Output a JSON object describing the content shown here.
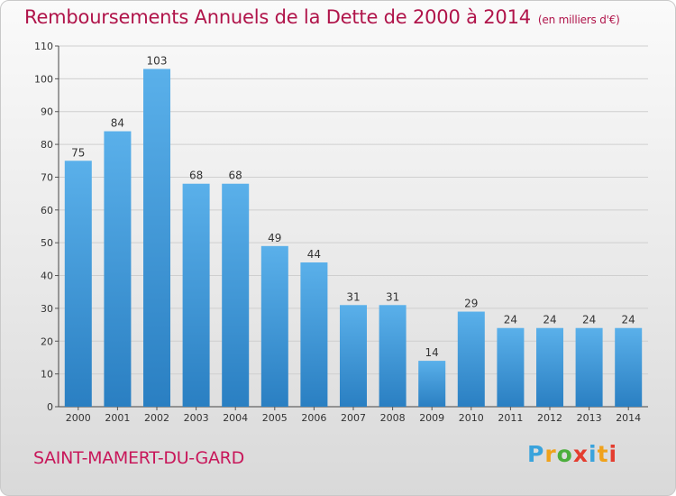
{
  "header": {
    "title": "Remboursements Annuels de la Dette de 2000 à 2014",
    "unit": "(en milliers d'€)"
  },
  "footer": {
    "commune": "SAINT-MAMERT-DU-GARD",
    "logo": "Proxiti",
    "logo_colors": [
      "#3aa3dc",
      "#f0a21b",
      "#4cae3c",
      "#e43d2f",
      "#3aa3dc",
      "#f0a21b",
      "#e43d2f"
    ]
  },
  "colors": {
    "bar_top": "#5ab0ea",
    "bar_bottom": "#2a7fc2",
    "accent": "#b0144a"
  },
  "chart_data": {
    "type": "bar",
    "categories": [
      "2000",
      "2001",
      "2002",
      "2003",
      "2004",
      "2005",
      "2006",
      "2007",
      "2008",
      "2009",
      "2010",
      "2011",
      "2012",
      "2013",
      "2014"
    ],
    "values": [
      75,
      84,
      103,
      68,
      68,
      49,
      44,
      31,
      31,
      14,
      29,
      24,
      24,
      24,
      24
    ],
    "ylim": [
      0,
      110
    ],
    "yticks": [
      0,
      10,
      20,
      30,
      40,
      50,
      60,
      70,
      80,
      90,
      100,
      110
    ],
    "grid": true,
    "legend": "none"
  }
}
